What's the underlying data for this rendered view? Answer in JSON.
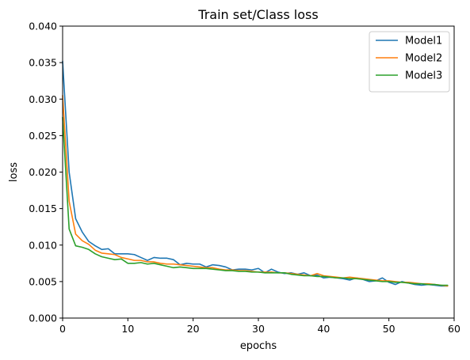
{
  "chart_data": {
    "type": "line",
    "title": "Train set/Class loss",
    "xlabel": "epochs",
    "ylabel": "loss",
    "xlim": [
      0,
      60
    ],
    "ylim": [
      0.0,
      0.04
    ],
    "x_ticks": [
      "0",
      "10",
      "20",
      "30",
      "40",
      "50",
      "60"
    ],
    "y_ticks": [
      "0.000",
      "0.005",
      "0.010",
      "0.015",
      "0.020",
      "0.025",
      "0.030",
      "0.035",
      "0.040"
    ],
    "grid": false,
    "legend_position": "top-right",
    "x": [
      0,
      1,
      2,
      3,
      4,
      5,
      6,
      7,
      8,
      9,
      10,
      11,
      12,
      13,
      14,
      15,
      16,
      17,
      18,
      19,
      20,
      21,
      22,
      23,
      24,
      25,
      26,
      27,
      28,
      29,
      30,
      31,
      32,
      33,
      34,
      35,
      36,
      37,
      38,
      39,
      40,
      41,
      42,
      43,
      44,
      45,
      46,
      47,
      48,
      49,
      50,
      51,
      52,
      53,
      54,
      55,
      56,
      57,
      58,
      59
    ],
    "series": [
      {
        "name": "Model1",
        "color": "#1f77b4",
        "values": [
          0.0352,
          0.02,
          0.0136,
          0.0118,
          0.0105,
          0.0099,
          0.0094,
          0.0095,
          0.0088,
          0.0088,
          0.0088,
          0.0087,
          0.0083,
          0.0079,
          0.0083,
          0.0082,
          0.0082,
          0.008,
          0.0073,
          0.0075,
          0.0074,
          0.0074,
          0.007,
          0.0073,
          0.0072,
          0.007,
          0.0066,
          0.0067,
          0.0067,
          0.0066,
          0.0068,
          0.0062,
          0.0067,
          0.0063,
          0.0061,
          0.0062,
          0.006,
          0.0062,
          0.0058,
          0.0059,
          0.0055,
          0.0056,
          0.0055,
          0.0054,
          0.0052,
          0.0055,
          0.0053,
          0.005,
          0.0051,
          0.0055,
          0.0049,
          0.0046,
          0.005,
          0.0048,
          0.0046,
          0.0045,
          0.0046,
          0.0045,
          0.0044,
          0.0044
        ]
      },
      {
        "name": "Model2",
        "color": "#ff7f0e",
        "values": [
          0.0305,
          0.016,
          0.0115,
          0.0106,
          0.0101,
          0.0093,
          0.0089,
          0.0088,
          0.0087,
          0.0083,
          0.0081,
          0.0079,
          0.0079,
          0.0077,
          0.0077,
          0.0075,
          0.0074,
          0.0074,
          0.0073,
          0.0072,
          0.0071,
          0.007,
          0.0069,
          0.0069,
          0.0067,
          0.0066,
          0.0066,
          0.0065,
          0.0065,
          0.0064,
          0.0063,
          0.0063,
          0.0063,
          0.0062,
          0.0062,
          0.0061,
          0.006,
          0.0059,
          0.0058,
          0.0061,
          0.0058,
          0.0057,
          0.0056,
          0.0055,
          0.0056,
          0.0055,
          0.0054,
          0.0053,
          0.0052,
          0.0051,
          0.0051,
          0.005,
          0.0049,
          0.0049,
          0.0048,
          0.0047,
          0.0047,
          0.0046,
          0.0045,
          0.0044
        ]
      },
      {
        "name": "Model3",
        "color": "#2ca02c",
        "values": [
          0.0275,
          0.0122,
          0.0099,
          0.0097,
          0.0094,
          0.0088,
          0.0084,
          0.0082,
          0.008,
          0.0081,
          0.0075,
          0.0075,
          0.0076,
          0.0074,
          0.0075,
          0.0073,
          0.0071,
          0.0069,
          0.007,
          0.0069,
          0.0068,
          0.0068,
          0.0068,
          0.0067,
          0.0066,
          0.0065,
          0.0065,
          0.0064,
          0.0064,
          0.0063,
          0.0063,
          0.0062,
          0.0062,
          0.0062,
          0.0062,
          0.006,
          0.0059,
          0.0058,
          0.0058,
          0.0057,
          0.0057,
          0.0056,
          0.0055,
          0.0055,
          0.0054,
          0.0054,
          0.0053,
          0.0052,
          0.0051,
          0.005,
          0.005,
          0.0049,
          0.0049,
          0.0048,
          0.0047,
          0.0047,
          0.0046,
          0.0046,
          0.0045,
          0.0045
        ]
      }
    ]
  }
}
